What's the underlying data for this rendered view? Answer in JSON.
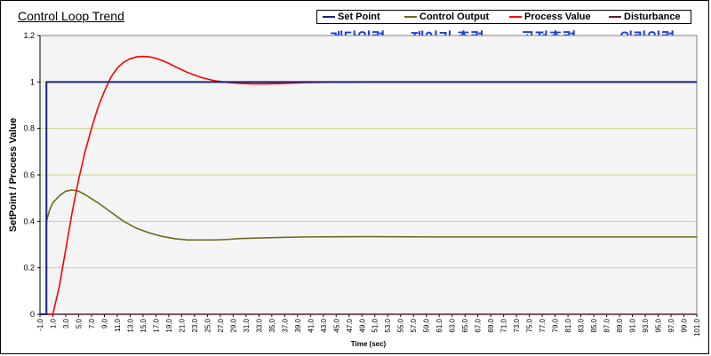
{
  "chart_data": {
    "type": "line",
    "title": "Control Loop Trend",
    "xlabel": "Time (sec)",
    "ylabel": "SetPoint / Process Value",
    "xlim": [
      -1,
      101
    ],
    "ylim": [
      0,
      1.2
    ],
    "grid": "horizontal",
    "legend_position": "top-right",
    "y_ticks": [
      "0",
      "0.2",
      "0.4",
      "0.6",
      "0.8",
      "1",
      "1.2"
    ],
    "x_ticks": [
      "-1.0",
      "1.0",
      "3.0",
      "5.0",
      "7.0",
      "9.0",
      "11.0",
      "13.0",
      "15.0",
      "17.0",
      "19.0",
      "21.0",
      "23.0",
      "25.0",
      "27.0",
      "29.0",
      "31.0",
      "33.0",
      "35.0",
      "37.0",
      "39.0",
      "41.0",
      "43.0",
      "45.0",
      "47.0",
      "49.0",
      "51.0",
      "53.0",
      "55.0",
      "57.0",
      "59.0",
      "61.0",
      "63.0",
      "65.0",
      "67.0",
      "69.0",
      "71.0",
      "73.0",
      "75.0",
      "77.0",
      "79.0",
      "81.0",
      "83.0",
      "85.0",
      "87.0",
      "89.0",
      "91.0",
      "93.0",
      "95.0",
      "97.0",
      "99.0",
      "101.0"
    ],
    "series": [
      {
        "name": "Set Point",
        "color": "#1a237e",
        "points": [
          [
            -1,
            0
          ],
          [
            0,
            0
          ],
          [
            0,
            1
          ],
          [
            101,
            1
          ]
        ]
      },
      {
        "name": "Control Output",
        "color": "#6b6b1f",
        "points": [
          [
            -1,
            0
          ],
          [
            0,
            0
          ],
          [
            0,
            0.4
          ],
          [
            0.5,
            0.45
          ],
          [
            1,
            0.48
          ],
          [
            2,
            0.51
          ],
          [
            3,
            0.53
          ],
          [
            4,
            0.535
          ],
          [
            5,
            0.53
          ],
          [
            6,
            0.515
          ],
          [
            8,
            0.48
          ],
          [
            10,
            0.44
          ],
          [
            12,
            0.4
          ],
          [
            14,
            0.37
          ],
          [
            16,
            0.35
          ],
          [
            18,
            0.335
          ],
          [
            20,
            0.325
          ],
          [
            22,
            0.32
          ],
          [
            24,
            0.32
          ],
          [
            26,
            0.32
          ],
          [
            28,
            0.322
          ],
          [
            30,
            0.326
          ],
          [
            35,
            0.33
          ],
          [
            40,
            0.333
          ],
          [
            50,
            0.334
          ],
          [
            60,
            0.333
          ],
          [
            70,
            0.333
          ],
          [
            80,
            0.333
          ],
          [
            90,
            0.333
          ],
          [
            101,
            0.333
          ]
        ]
      },
      {
        "name": "Process Value",
        "color": "#ff0000",
        "points": [
          [
            -1,
            0
          ],
          [
            0,
            0
          ],
          [
            1,
            0
          ],
          [
            2,
            0.12
          ],
          [
            3,
            0.28
          ],
          [
            4,
            0.44
          ],
          [
            5,
            0.58
          ],
          [
            6,
            0.7
          ],
          [
            7,
            0.8
          ],
          [
            8,
            0.89
          ],
          [
            9,
            0.96
          ],
          [
            10,
            1.02
          ],
          [
            11,
            1.06
          ],
          [
            12,
            1.085
          ],
          [
            13,
            1.1
          ],
          [
            14,
            1.108
          ],
          [
            15,
            1.11
          ],
          [
            16,
            1.108
          ],
          [
            17,
            1.102
          ],
          [
            18,
            1.092
          ],
          [
            19,
            1.08
          ],
          [
            20,
            1.066
          ],
          [
            22,
            1.04
          ],
          [
            24,
            1.02
          ],
          [
            26,
            1.006
          ],
          [
            28,
            0.998
          ],
          [
            30,
            0.994
          ],
          [
            32,
            0.992
          ],
          [
            34,
            0.992
          ],
          [
            36,
            0.993
          ],
          [
            38,
            0.995
          ],
          [
            40,
            0.997
          ],
          [
            45,
            0.999
          ],
          [
            50,
            1.0
          ],
          [
            60,
            1.0
          ],
          [
            70,
            1.0
          ],
          [
            80,
            1.0
          ],
          [
            90,
            1.0
          ],
          [
            101,
            1.0
          ]
        ]
      },
      {
        "name": "Disturbance",
        "color": "#5a1f2a",
        "points": [
          [
            -1,
            0
          ],
          [
            101,
            0
          ]
        ]
      }
    ]
  },
  "annotations": {
    "set_point_kr": "계단입력",
    "control_output_kr": "제어기 출력",
    "process_value_kr": "공정출력",
    "disturbance_kr": "외란입력"
  }
}
